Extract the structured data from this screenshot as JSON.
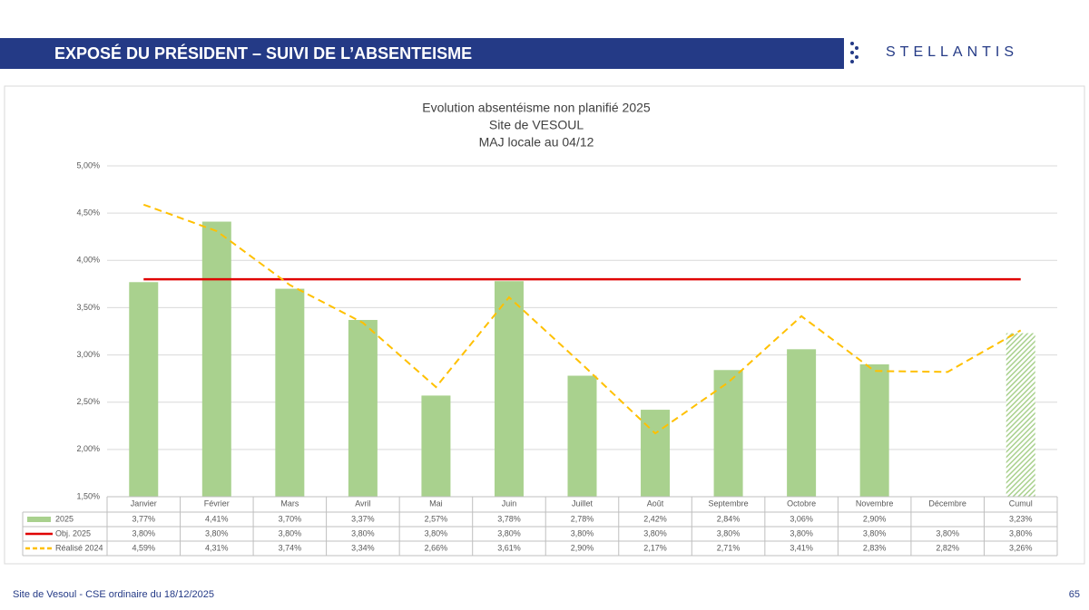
{
  "header": {
    "title": "EXPOSÉ DU PRÉSIDENT – SUIVI DE L’ABSENTEISME",
    "logo": "STELLANTIS"
  },
  "footer": {
    "text": "Site de Vesoul - CSE ordinaire du 18/12/2025",
    "page": "65"
  },
  "chart_data": {
    "type": "combo",
    "title": [
      "Evolution absentéisme non planifié 2025",
      "Site de VESOUL",
      "MAJ locale au 04/12"
    ],
    "categories": [
      "Janvier",
      "Février",
      "Mars",
      "Avril",
      "Mai",
      "Juin",
      "Juillet",
      "Août",
      "Septembre",
      "Octobre",
      "Novembre",
      "Décembre",
      "Cumul"
    ],
    "series": [
      {
        "name": "2025",
        "type": "bar",
        "color": "#a9d18e",
        "values": [
          3.77,
          4.41,
          3.7,
          3.37,
          2.57,
          3.78,
          2.78,
          2.42,
          2.84,
          3.06,
          2.9,
          null,
          3.23
        ],
        "value_labels": [
          "3,77%",
          "4,41%",
          "3,70%",
          "3,37%",
          "2,57%",
          "3,78%",
          "2,78%",
          "2,42%",
          "2,84%",
          "3,06%",
          "2,90%",
          null,
          "3,23%"
        ]
      },
      {
        "name": "Obj. 2025",
        "type": "line",
        "color": "#e00000",
        "dashed": false,
        "values": [
          3.8,
          3.8,
          3.8,
          3.8,
          3.8,
          3.8,
          3.8,
          3.8,
          3.8,
          3.8,
          3.8,
          3.8,
          3.8
        ],
        "value_labels": [
          "3,80%",
          "3,80%",
          "3,80%",
          "3,80%",
          "3,80%",
          "3,80%",
          "3,80%",
          "3,80%",
          "3,80%",
          "3,80%",
          "3,80%",
          "3,80%",
          "3,80%"
        ]
      },
      {
        "name": "Réalisé 2024",
        "type": "line",
        "color": "#ffc000",
        "dashed": true,
        "values": [
          4.59,
          4.31,
          3.74,
          3.34,
          2.66,
          3.61,
          2.9,
          2.17,
          2.71,
          3.41,
          2.83,
          2.82,
          3.26
        ],
        "value_labels": [
          "4,59%",
          "4,31%",
          "3,74%",
          "3,34%",
          "2,66%",
          "3,61%",
          "2,90%",
          "2,17%",
          "2,71%",
          "3,41%",
          "2,83%",
          "2,82%",
          "3,26%"
        ]
      }
    ],
    "ylim": [
      1.5,
      5.0
    ],
    "yticks": [
      {
        "value": 1.5,
        "label": "1,50%"
      },
      {
        "value": 2.0,
        "label": "2,00%"
      },
      {
        "value": 2.5,
        "label": "2,50%"
      },
      {
        "value": 3.0,
        "label": "3,00%"
      },
      {
        "value": 3.5,
        "label": "3,50%"
      },
      {
        "value": 4.0,
        "label": "4,00%"
      },
      {
        "value": 4.5,
        "label": "4,50%"
      },
      {
        "value": 5.0,
        "label": "5,00%"
      }
    ],
    "grid": true,
    "last_bar_hatched": true
  }
}
